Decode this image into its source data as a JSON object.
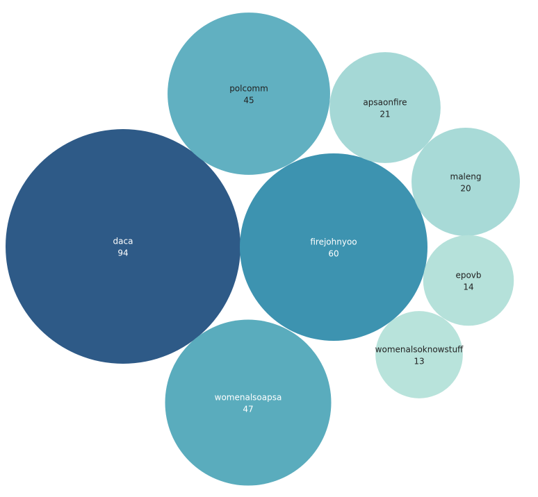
{
  "chart_data": {
    "type": "bubble",
    "categories": [
      "daca",
      "firejohnyoo",
      "womenalsoapsa",
      "polcomm",
      "apsaonfire",
      "maleng",
      "epovb",
      "womenalsoknowstuff"
    ],
    "values": [
      94,
      60,
      47,
      45,
      21,
      20,
      14,
      13
    ],
    "colors": [
      "#2e5a87",
      "#3d93b0",
      "#5aacbd",
      "#61b0c1",
      "#a5d8d6",
      "#a8dad7",
      "#b5e1da",
      "#b8e3db"
    ]
  }
}
